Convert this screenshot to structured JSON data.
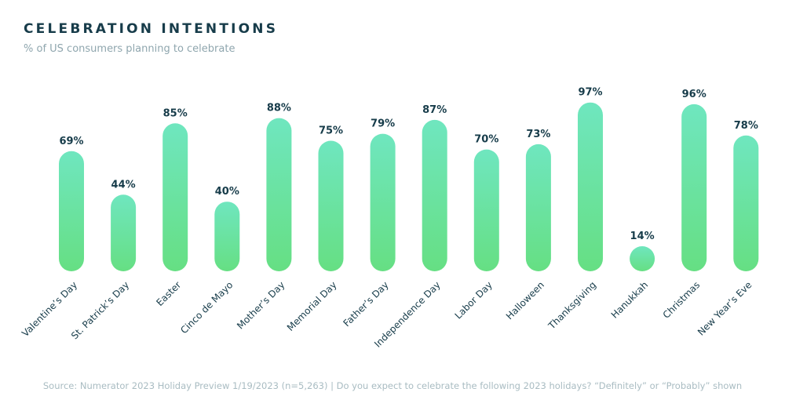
{
  "header": {
    "title": "CELEBRATION INTENTIONS",
    "subtitle": "% of US consumers planning to celebrate"
  },
  "footer": {
    "source": "Source: Numerator 2023 Holiday Preview 1/19/2023 (n=5,263) | Do you expect to celebrate the following 2023 holidays? “Definitely” or “Probably” shown"
  },
  "colors": {
    "bar_top": "#6fe6bf",
    "bar_bottom": "#66df83",
    "label": "#173c4a",
    "title": "#173c4a",
    "subtitle": "#8fa6ae",
    "source": "#a9bcc2"
  },
  "chart_data": {
    "type": "bar",
    "title": "CELEBRATION INTENTIONS",
    "subtitle": "% of US consumers planning to celebrate",
    "categories": [
      "Valentine’s Day",
      "St. Patrick’s Day",
      "Easter",
      "Cinco de Mayo",
      "Mother’s Day",
      "Memorial Day",
      "Father’s Day",
      "Independence Day",
      "Labor Day",
      "Halloween",
      "Thanksgiving",
      "Hanukkah",
      "Christmas",
      "New Year’s Eve"
    ],
    "values": [
      69,
      44,
      85,
      40,
      88,
      75,
      79,
      87,
      70,
      73,
      97,
      14,
      96,
      78
    ],
    "value_labels": [
      "69%",
      "44%",
      "85%",
      "40%",
      "88%",
      "75%",
      "79%",
      "87%",
      "70%",
      "73%",
      "97%",
      "14%",
      "96%",
      "78%"
    ],
    "ylim": [
      0,
      100
    ],
    "grid": false,
    "legend": "none",
    "bar_style": "rounded pill, vertical gradient",
    "tick_label_rotation": -45
  }
}
